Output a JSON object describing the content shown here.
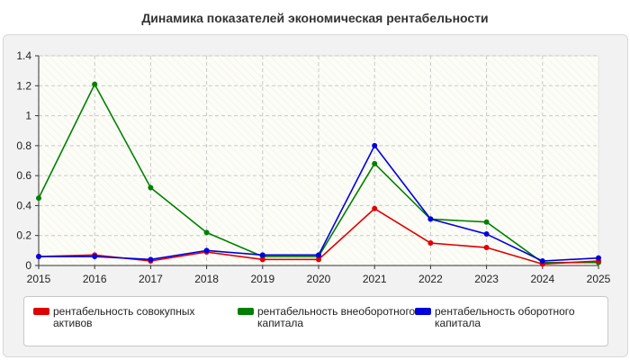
{
  "chart_data": {
    "type": "line",
    "title": "Динамика показателей экономическая рентабельности",
    "xlabel": "",
    "ylabel": "",
    "x": [
      "2015",
      "2016",
      "2017",
      "2018",
      "2019",
      "2020",
      "2021",
      "2022",
      "2023",
      "2024",
      "2025"
    ],
    "ylim": [
      0,
      1.4
    ],
    "yticks": [
      "0",
      "0.2",
      "0.4",
      "0.6",
      "0.8",
      "1",
      "1.2",
      "1.4"
    ],
    "grid": true,
    "legend_position": "bottom",
    "series": [
      {
        "name": "рентабельность совокупных активов",
        "color": "#e00000",
        "values": [
          0.06,
          0.07,
          0.03,
          0.09,
          0.04,
          0.04,
          0.38,
          0.15,
          0.12,
          0.01,
          0.03
        ]
      },
      {
        "name": "рентабельность внеоборотного капитала",
        "color": "#008000",
        "values": [
          0.45,
          1.21,
          0.52,
          0.22,
          0.06,
          0.06,
          0.68,
          0.31,
          0.29,
          0.02,
          0.02
        ]
      },
      {
        "name": "рентабельность оборотного капитала",
        "color": "#0000e0",
        "values": [
          0.06,
          0.06,
          0.04,
          0.1,
          0.07,
          0.07,
          0.8,
          0.31,
          0.21,
          0.03,
          0.05
        ]
      }
    ]
  }
}
